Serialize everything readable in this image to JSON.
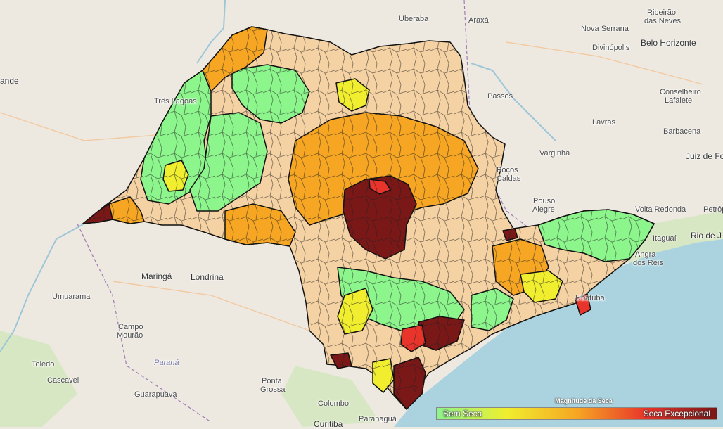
{
  "colors": {
    "land": "#ede9e1",
    "sea": "#aad3df",
    "forest": "#cfe3b7",
    "border": "#a07bb3",
    "sem_seca": "#8cf58c",
    "fraca": "#f0ee2e",
    "moderada": "#f5d2a3",
    "grave": "#f6a623",
    "extrema": "#e8691c",
    "excepcional_red": "#e8342a",
    "excepcional_dark": "#7a1717"
  },
  "cities": [
    {
      "name": "Uberaba"
    },
    {
      "name": "Araxá"
    },
    {
      "name": "Ribeirão"
    },
    {
      "name": "das Neves"
    },
    {
      "name": "Nova Serrana"
    },
    {
      "name": "Divinópolis"
    },
    {
      "name": "Belo Horizonte"
    },
    {
      "name": "Conselheiro"
    },
    {
      "name": "Lafaiete"
    },
    {
      "name": "Três Lagoas"
    },
    {
      "name": "ande"
    },
    {
      "name": "Passos"
    },
    {
      "name": "Lavras"
    },
    {
      "name": "Barbacena"
    },
    {
      "name": "Varginha"
    },
    {
      "name": "Juiz de Fo"
    },
    {
      "name": "Poços"
    },
    {
      "name": "Caldas"
    },
    {
      "name": "Pouso"
    },
    {
      "name": "Alegre"
    },
    {
      "name": "Volta Redonda"
    },
    {
      "name": "Petrópol"
    },
    {
      "name": "Itaguaí"
    },
    {
      "name": "Rio de J"
    },
    {
      "name": "Angra"
    },
    {
      "name": "dos Reis"
    },
    {
      "name": "Maringá"
    },
    {
      "name": "Londrina"
    },
    {
      "name": "Umuarama"
    },
    {
      "name": "Campo"
    },
    {
      "name": "Mourão"
    },
    {
      "name": "Paraná"
    },
    {
      "name": "Toledo"
    },
    {
      "name": "Cascavel"
    },
    {
      "name": "Ponta"
    },
    {
      "name": "Grossa"
    },
    {
      "name": "Guarapuava"
    },
    {
      "name": "Colombo"
    },
    {
      "name": "Paranaguá"
    },
    {
      "name": "Curitiba"
    },
    {
      "name": "Ubatuba"
    }
  ],
  "legend": {
    "title": "Magnitude da Seca",
    "low_label": "Sem Seca",
    "high_label": "Seca Excepcional",
    "gradient": [
      "#8cf58c",
      "#f0ee2e",
      "#f6a623",
      "#e8342a",
      "#7a1717"
    ]
  }
}
